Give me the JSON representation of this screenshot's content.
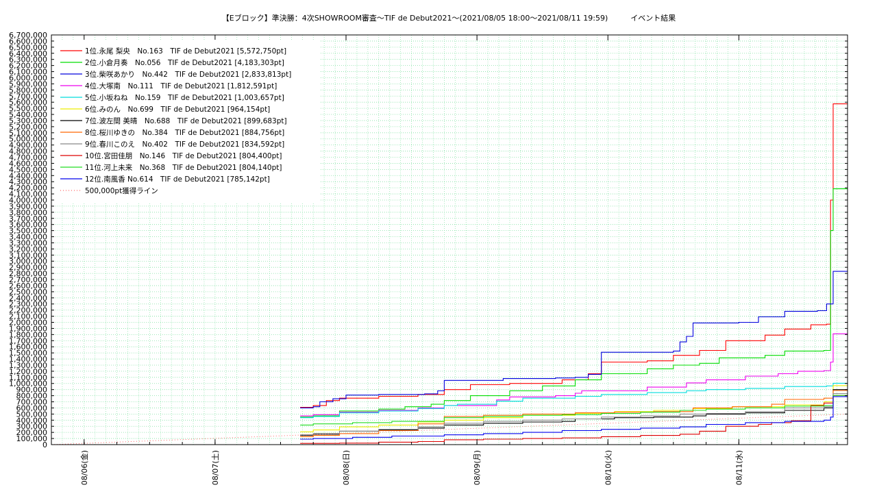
{
  "chart_data": {
    "type": "line",
    "title": "【Eブロック】準決勝：4次SHOWROOM審査〜TIF de Debut2021〜(2021/08/05 18:00〜2021/08/11 19:59)　　　イベント結果",
    "xlabel": "",
    "ylabel": "",
    "x_unit": "days since 2021/08/05 18:00",
    "xlim": [
      0,
      6.08
    ],
    "ylim": [
      0,
      6700000
    ],
    "y_tick_step": 100000,
    "x_tick_labels": [
      {
        "x": 0.25,
        "label": "08/06(金)"
      },
      {
        "x": 1.25,
        "label": "08/07(土)"
      },
      {
        "x": 2.25,
        "label": "08/08(日)"
      },
      {
        "x": 3.25,
        "label": "08/09(月)"
      },
      {
        "x": 4.25,
        "label": "08/10(火)"
      },
      {
        "x": 5.25,
        "label": "08/11(水)"
      }
    ],
    "grid": true,
    "legend_position": "top-left",
    "series": [
      {
        "name": "1位.永尾 梨央　No.163　TIF de Debut2021 [5,572,750pt]",
        "color": "#ff0000",
        "points": [
          [
            1.9,
            610000
          ],
          [
            2.0,
            640000
          ],
          [
            2.1,
            720000
          ],
          [
            2.2,
            760000
          ],
          [
            2.5,
            790000
          ],
          [
            2.8,
            820000
          ],
          [
            3.0,
            900000
          ],
          [
            3.2,
            980000
          ],
          [
            3.5,
            1000000
          ],
          [
            3.9,
            1060000
          ],
          [
            4.1,
            1160000
          ],
          [
            4.2,
            1350000
          ],
          [
            4.55,
            1370000
          ],
          [
            4.75,
            1460000
          ],
          [
            4.95,
            1540000
          ],
          [
            5.15,
            1700000
          ],
          [
            5.45,
            1790000
          ],
          [
            5.6,
            1890000
          ],
          [
            5.8,
            1960000
          ],
          [
            5.92,
            1970000
          ],
          [
            5.95,
            4000000
          ],
          [
            5.97,
            5572750
          ],
          [
            6.08,
            5572750
          ]
        ]
      },
      {
        "name": "2位.小倉月奏　No.056　TIF de Debut2021 [4,183,303pt]",
        "color": "#00dd00",
        "points": [
          [
            1.9,
            450000
          ],
          [
            2.0,
            470000
          ],
          [
            2.2,
            550000
          ],
          [
            2.5,
            580000
          ],
          [
            2.7,
            620000
          ],
          [
            2.9,
            660000
          ],
          [
            3.0,
            720000
          ],
          [
            3.2,
            800000
          ],
          [
            3.5,
            880000
          ],
          [
            3.75,
            960000
          ],
          [
            4.0,
            1060000
          ],
          [
            4.2,
            1160000
          ],
          [
            4.55,
            1240000
          ],
          [
            4.75,
            1300000
          ],
          [
            4.95,
            1330000
          ],
          [
            5.1,
            1420000
          ],
          [
            5.45,
            1460000
          ],
          [
            5.6,
            1530000
          ],
          [
            5.9,
            1540000
          ],
          [
            5.95,
            3500000
          ],
          [
            5.97,
            4183303
          ],
          [
            6.08,
            4183303
          ]
        ]
      },
      {
        "name": "3位.柴咲あかり　No.442　TIF de Debut2021 [2,833,813pt]",
        "color": "#0000dd",
        "points": [
          [
            1.9,
            600000
          ],
          [
            2.0,
            620000
          ],
          [
            2.05,
            700000
          ],
          [
            2.15,
            750000
          ],
          [
            2.25,
            810000
          ],
          [
            2.5,
            820000
          ],
          [
            2.85,
            830000
          ],
          [
            2.95,
            880000
          ],
          [
            3.0,
            1050000
          ],
          [
            3.45,
            1080000
          ],
          [
            3.85,
            1090000
          ],
          [
            4.0,
            1100000
          ],
          [
            4.1,
            1150000
          ],
          [
            4.2,
            1510000
          ],
          [
            4.75,
            1530000
          ],
          [
            4.8,
            1680000
          ],
          [
            4.85,
            1770000
          ],
          [
            4.9,
            1990000
          ],
          [
            5.25,
            2000000
          ],
          [
            5.4,
            2090000
          ],
          [
            5.6,
            2180000
          ],
          [
            5.85,
            2190000
          ],
          [
            5.92,
            2300000
          ],
          [
            5.97,
            2833813
          ],
          [
            6.08,
            2833813
          ]
        ]
      },
      {
        "name": "4位.大塚南　No.111　TIF de Debut2021 [1,812,591pt]",
        "color": "#ee00ee",
        "points": [
          [
            1.9,
            470000
          ],
          [
            2.0,
            490000
          ],
          [
            2.2,
            530000
          ],
          [
            2.5,
            560000
          ],
          [
            2.8,
            600000
          ],
          [
            3.0,
            640000
          ],
          [
            3.4,
            730000
          ],
          [
            3.5,
            780000
          ],
          [
            3.85,
            800000
          ],
          [
            4.0,
            840000
          ],
          [
            4.05,
            880000
          ],
          [
            4.55,
            940000
          ],
          [
            4.85,
            1010000
          ],
          [
            5.0,
            1060000
          ],
          [
            5.3,
            1120000
          ],
          [
            5.55,
            1160000
          ],
          [
            5.7,
            1200000
          ],
          [
            5.9,
            1210000
          ],
          [
            5.95,
            1350000
          ],
          [
            5.97,
            1812591
          ],
          [
            6.08,
            1812591
          ]
        ]
      },
      {
        "name": "5位.小坂ねね　No.159　TIF de Debut2021 [1,003,657pt]",
        "color": "#00dddd",
        "points": [
          [
            1.9,
            440000
          ],
          [
            2.0,
            460000
          ],
          [
            2.2,
            520000
          ],
          [
            2.5,
            550000
          ],
          [
            2.8,
            590000
          ],
          [
            3.0,
            640000
          ],
          [
            3.1,
            660000
          ],
          [
            3.4,
            710000
          ],
          [
            3.6,
            760000
          ],
          [
            4.0,
            790000
          ],
          [
            4.2,
            820000
          ],
          [
            4.55,
            850000
          ],
          [
            4.85,
            880000
          ],
          [
            5.0,
            900000
          ],
          [
            5.3,
            920000
          ],
          [
            5.6,
            950000
          ],
          [
            5.92,
            960000
          ],
          [
            5.97,
            1003657
          ],
          [
            6.08,
            1003657
          ]
        ]
      },
      {
        "name": "6位.みのん　No.699　TIF de Debut2021 [964,154pt]",
        "color": "#eeee00",
        "points": [
          [
            1.9,
            210000
          ],
          [
            2.0,
            240000
          ],
          [
            2.2,
            290000
          ],
          [
            2.5,
            320000
          ],
          [
            2.8,
            370000
          ],
          [
            3.0,
            400000
          ],
          [
            3.3,
            440000
          ],
          [
            3.6,
            480000
          ],
          [
            4.0,
            510000
          ],
          [
            4.3,
            540000
          ],
          [
            4.6,
            560000
          ],
          [
            4.9,
            590000
          ],
          [
            5.2,
            620000
          ],
          [
            5.6,
            650000
          ],
          [
            5.9,
            700000
          ],
          [
            5.97,
            964154
          ],
          [
            6.08,
            964154
          ]
        ]
      },
      {
        "name": "7位.波左間 美晴　No.688　TIF de Debut2021 [899,683pt]",
        "color": "#000000",
        "points": [
          [
            1.9,
            150000
          ],
          [
            2.0,
            170000
          ],
          [
            2.2,
            220000
          ],
          [
            2.5,
            240000
          ],
          [
            2.8,
            270000
          ],
          [
            3.0,
            320000
          ],
          [
            3.3,
            350000
          ],
          [
            3.6,
            370000
          ],
          [
            3.9,
            380000
          ],
          [
            4.0,
            420000
          ],
          [
            4.3,
            440000
          ],
          [
            4.6,
            450000
          ],
          [
            4.9,
            470000
          ],
          [
            5.0,
            500000
          ],
          [
            5.3,
            520000
          ],
          [
            5.6,
            560000
          ],
          [
            5.9,
            600000
          ],
          [
            5.97,
            899683
          ],
          [
            6.08,
            899683
          ]
        ]
      },
      {
        "name": "8位.桜川ゆきの　No.384　TIF de Debut2021 [884,756pt]",
        "color": "#ff6600",
        "points": [
          [
            1.9,
            130000
          ],
          [
            2.0,
            150000
          ],
          [
            2.2,
            180000
          ],
          [
            2.5,
            230000
          ],
          [
            2.8,
            340000
          ],
          [
            3.0,
            460000
          ],
          [
            3.3,
            480000
          ],
          [
            3.6,
            500000
          ],
          [
            4.0,
            520000
          ],
          [
            4.3,
            530000
          ],
          [
            4.6,
            540000
          ],
          [
            4.9,
            600000
          ],
          [
            5.2,
            620000
          ],
          [
            5.5,
            660000
          ],
          [
            5.6,
            740000
          ],
          [
            5.9,
            760000
          ],
          [
            5.97,
            884756
          ],
          [
            6.08,
            884756
          ]
        ]
      },
      {
        "name": "9位.春川このえ　No.402　TIF de Debut2021 [834,592pt]",
        "color": "#888888",
        "points": [
          [
            1.9,
            160000
          ],
          [
            2.0,
            180000
          ],
          [
            2.2,
            220000
          ],
          [
            2.5,
            250000
          ],
          [
            2.8,
            290000
          ],
          [
            3.0,
            350000
          ],
          [
            3.3,
            380000
          ],
          [
            3.6,
            400000
          ],
          [
            3.9,
            420000
          ],
          [
            4.2,
            450000
          ],
          [
            4.5,
            470000
          ],
          [
            4.8,
            500000
          ],
          [
            5.0,
            510000
          ],
          [
            5.3,
            540000
          ],
          [
            5.6,
            600000
          ],
          [
            5.9,
            620000
          ],
          [
            5.97,
            834592
          ],
          [
            6.08,
            834592
          ]
        ]
      },
      {
        "name": "10位.宮田佳朋　No.146　TIF de Debut2021 [804,400pt]",
        "color": "#dd0000",
        "points": [
          [
            1.9,
            20000
          ],
          [
            2.2,
            25000
          ],
          [
            2.5,
            40000
          ],
          [
            2.8,
            50000
          ],
          [
            3.0,
            80000
          ],
          [
            3.3,
            90000
          ],
          [
            3.6,
            100000
          ],
          [
            3.9,
            110000
          ],
          [
            4.2,
            130000
          ],
          [
            4.5,
            150000
          ],
          [
            4.8,
            170000
          ],
          [
            4.95,
            220000
          ],
          [
            5.15,
            300000
          ],
          [
            5.4,
            330000
          ],
          [
            5.5,
            360000
          ],
          [
            5.65,
            390000
          ],
          [
            5.8,
            640000
          ],
          [
            5.9,
            680000
          ],
          [
            5.97,
            804400
          ],
          [
            6.08,
            804400
          ]
        ]
      },
      {
        "name": "11位.河上未来　No.368　TIF de Debut2021 [804,140pt]",
        "color": "#22dd22",
        "points": [
          [
            1.9,
            320000
          ],
          [
            2.0,
            340000
          ],
          [
            2.3,
            360000
          ],
          [
            2.6,
            380000
          ],
          [
            3.0,
            440000
          ],
          [
            3.3,
            460000
          ],
          [
            3.6,
            480000
          ],
          [
            3.9,
            490000
          ],
          [
            4.2,
            510000
          ],
          [
            4.5,
            530000
          ],
          [
            4.8,
            560000
          ],
          [
            5.0,
            580000
          ],
          [
            5.3,
            600000
          ],
          [
            5.6,
            630000
          ],
          [
            5.9,
            640000
          ],
          [
            5.97,
            804140
          ],
          [
            6.08,
            804140
          ]
        ]
      },
      {
        "name": "12位.南風香 No.614　TIF de Debut2021 [785,142pt]",
        "color": "#0000ee",
        "points": [
          [
            1.9,
            90000
          ],
          [
            2.0,
            100000
          ],
          [
            2.3,
            120000
          ],
          [
            2.6,
            140000
          ],
          [
            3.0,
            160000
          ],
          [
            3.3,
            180000
          ],
          [
            3.6,
            200000
          ],
          [
            3.9,
            230000
          ],
          [
            4.2,
            250000
          ],
          [
            4.5,
            270000
          ],
          [
            4.8,
            290000
          ],
          [
            5.0,
            330000
          ],
          [
            5.3,
            360000
          ],
          [
            5.6,
            380000
          ],
          [
            5.9,
            400000
          ],
          [
            5.95,
            450000
          ],
          [
            5.97,
            785142
          ],
          [
            6.08,
            785142
          ]
        ]
      },
      {
        "name": "500,000pt獲得ライン",
        "color": "#ff6666",
        "dotted": true,
        "points": [
          [
            0,
            0
          ],
          [
            6.08,
            500000
          ]
        ]
      }
    ]
  }
}
